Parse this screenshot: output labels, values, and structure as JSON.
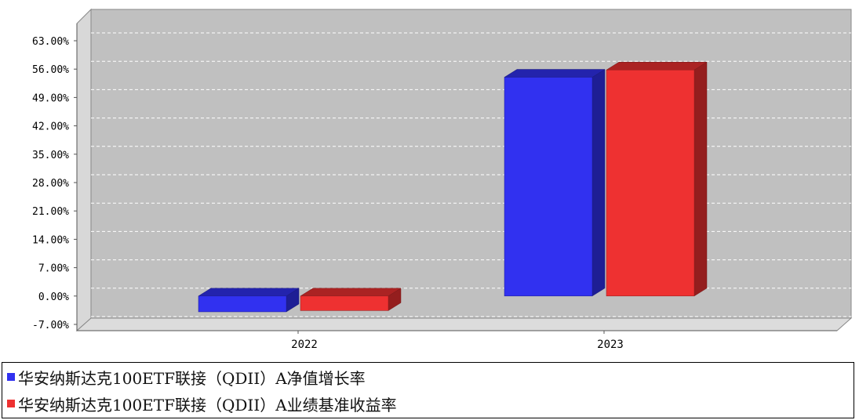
{
  "chart_data": {
    "type": "bar",
    "categories": [
      "2022",
      "2023"
    ],
    "series": [
      {
        "name": "华安纳斯达克100ETF联接（QDII）A净值增长率",
        "color": "#3131F0",
        "values": [
          -3.9,
          54.0
        ]
      },
      {
        "name": "华安纳斯达克100ETF联接（QDII）A业绩基准收益率",
        "color": "#EE3131",
        "values": [
          -3.6,
          55.8
        ]
      }
    ],
    "yticks": [
      "-7.00%",
      "0.00%",
      "7.00%",
      "14.00%",
      "21.00%",
      "28.00%",
      "35.00%",
      "42.00%",
      "49.00%",
      "56.00%",
      "63.00%"
    ],
    "ylim": [
      -7,
      63
    ],
    "grid": true,
    "legend_position": "bottom",
    "title": "",
    "xlabel": "",
    "ylabel": ""
  }
}
